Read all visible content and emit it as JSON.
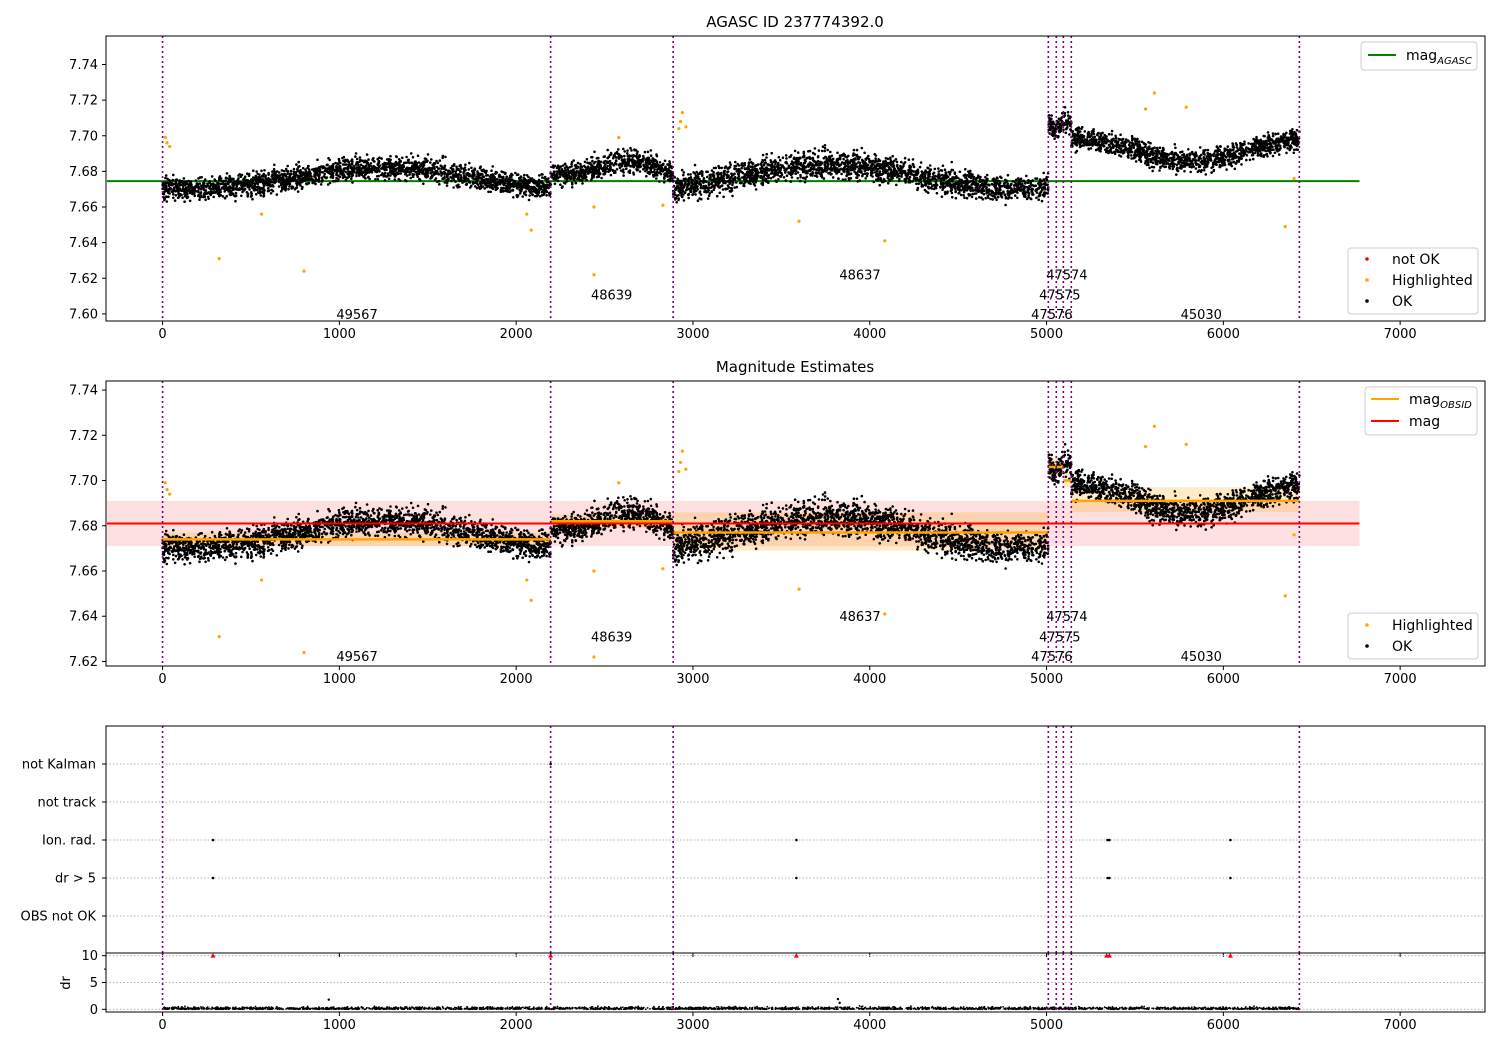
{
  "chart_data": [
    {
      "type": "scatter",
      "title": "AGASC ID 237774392.0",
      "xlim": [
        -320,
        7480
      ],
      "ylim": [
        7.596,
        7.756
      ],
      "x_ticks": [
        0,
        1000,
        2000,
        3000,
        4000,
        5000,
        6000,
        7000
      ],
      "y_ticks": [
        7.6,
        7.62,
        7.64,
        7.66,
        7.68,
        7.7,
        7.72,
        7.74
      ],
      "obsid_boundaries": [
        0,
        2195,
        2888,
        5010,
        5055,
        5095,
        5140,
        6430
      ],
      "obsid_labels": [
        {
          "text": "49567",
          "x": 1100,
          "y": 7.6
        },
        {
          "text": "48639",
          "x": 2540,
          "y": 7.611
        },
        {
          "text": "48637",
          "x": 3945,
          "y": 7.622
        },
        {
          "text": "47574",
          "x": 5115,
          "y": 7.622
        },
        {
          "text": "47575",
          "x": 5075,
          "y": 7.611
        },
        {
          "text": "47576",
          "x": 5030,
          "y": 7.6
        },
        {
          "text": "45030",
          "x": 5875,
          "y": 7.6
        }
      ],
      "reference_line": {
        "name": "mag_AGASC",
        "y": 7.6745,
        "x_range": [
          -320,
          6770
        ],
        "color": "#008000"
      },
      "segments": [
        {
          "x": [
            0,
            2195
          ],
          "base": 7.676,
          "amp": 0.006,
          "spread": 0.005
        },
        {
          "x": [
            2195,
            2888
          ],
          "base": 7.682,
          "amp": 0.004,
          "spread": 0.005
        },
        {
          "x": [
            2888,
            5010
          ],
          "base": 7.677,
          "amp": 0.007,
          "spread": 0.006
        },
        {
          "x": [
            5010,
            5140
          ],
          "base": 7.706,
          "amp": 0.003,
          "spread": 0.005
        },
        {
          "x": [
            5140,
            6430
          ],
          "base": 7.692,
          "amp": 0.006,
          "spread": 0.005
        }
      ],
      "highlighted_points": [
        {
          "x": 15,
          "y": 7.699
        },
        {
          "x": 25,
          "y": 7.696
        },
        {
          "x": 40,
          "y": 7.694
        },
        {
          "x": 320,
          "y": 7.631
        },
        {
          "x": 560,
          "y": 7.656
        },
        {
          "x": 800,
          "y": 7.624
        },
        {
          "x": 2060,
          "y": 7.656
        },
        {
          "x": 2085,
          "y": 7.647
        },
        {
          "x": 2440,
          "y": 7.66
        },
        {
          "x": 2440,
          "y": 7.622
        },
        {
          "x": 2580,
          "y": 7.699
        },
        {
          "x": 2830,
          "y": 7.661
        },
        {
          "x": 2920,
          "y": 7.704
        },
        {
          "x": 2930,
          "y": 7.708
        },
        {
          "x": 2940,
          "y": 7.713
        },
        {
          "x": 2960,
          "y": 7.705
        },
        {
          "x": 3600,
          "y": 7.652
        },
        {
          "x": 4085,
          "y": 7.641
        },
        {
          "x": 5560,
          "y": 7.715
        },
        {
          "x": 5610,
          "y": 7.724
        },
        {
          "x": 5790,
          "y": 7.716
        },
        {
          "x": 6350,
          "y": 7.649
        },
        {
          "x": 6400,
          "y": 7.676
        }
      ],
      "legend": [
        {
          "name": "not OK",
          "color": "#ff0000",
          "position": "lower-right"
        },
        {
          "name": "Highlighted",
          "color": "#ffa500",
          "position": "lower-right"
        },
        {
          "name": "OK",
          "color": "#000000",
          "position": "lower-right"
        }
      ]
    },
    {
      "type": "scatter",
      "title": "Magnitude Estimates",
      "xlim": [
        -320,
        7480
      ],
      "ylim": [
        7.618,
        7.744
      ],
      "x_ticks": [
        0,
        1000,
        2000,
        3000,
        4000,
        5000,
        6000,
        7000
      ],
      "y_ticks": [
        7.62,
        7.64,
        7.66,
        7.68,
        7.7,
        7.72,
        7.74
      ],
      "mag": {
        "y": 7.681,
        "band": [
          7.671,
          7.691
        ],
        "x_range": [
          -320,
          6770
        ],
        "color": "#ff0000"
      },
      "mag_obsid": [
        {
          "x": [
            0,
            2195
          ],
          "y": 7.674,
          "band": [
            7.671,
            7.677
          ]
        },
        {
          "x": [
            2195,
            2888
          ],
          "y": 7.682,
          "band": [
            7.679,
            7.685
          ]
        },
        {
          "x": [
            2888,
            5010
          ],
          "y": 7.677,
          "band": [
            7.669,
            7.686
          ]
        },
        {
          "x": [
            5010,
            5095
          ],
          "y": 7.706,
          "band": [
            7.702,
            7.71
          ]
        },
        {
          "x": [
            5095,
            5140
          ],
          "y": 7.7,
          "band": [
            7.697,
            7.703
          ]
        },
        {
          "x": [
            5140,
            6430
          ],
          "y": 7.691,
          "band": [
            7.686,
            7.697
          ]
        }
      ],
      "obsid_labels": [
        {
          "text": "49567",
          "x": 1100,
          "y": 7.6225
        },
        {
          "text": "48639",
          "x": 2540,
          "y": 7.631
        },
        {
          "text": "48637",
          "x": 3945,
          "y": 7.64
        },
        {
          "text": "47574",
          "x": 5115,
          "y": 7.64
        },
        {
          "text": "47575",
          "x": 5075,
          "y": 7.631
        },
        {
          "text": "47576",
          "x": 5030,
          "y": 7.6225
        },
        {
          "text": "45030",
          "x": 5875,
          "y": 7.6225
        }
      ],
      "legend_lines": [
        {
          "name": "mag_OBSID",
          "color": "#ffa500",
          "position": "top-right"
        },
        {
          "name": "mag",
          "color": "#ff0000",
          "position": "top-right"
        }
      ],
      "legend_points": [
        {
          "name": "Highlighted",
          "color": "#ffa500",
          "position": "lower-right"
        },
        {
          "name": "OK",
          "color": "#000000",
          "position": "lower-right"
        }
      ]
    },
    {
      "type": "scatter",
      "title": "",
      "xlim": [
        -320,
        7480
      ],
      "flag_rows": [
        "not Kalman",
        "not track",
        "Ion. rad.",
        "dr > 5",
        "OBS not OK"
      ],
      "flag_points": [
        {
          "row": "not Kalman",
          "x": 2195
        },
        {
          "row": "Ion. rad.",
          "x": 285
        },
        {
          "row": "Ion. rad.",
          "x": 3585
        },
        {
          "row": "Ion. rad.",
          "x": 5345
        },
        {
          "row": "Ion. rad.",
          "x": 5355
        },
        {
          "row": "Ion. rad.",
          "x": 6040
        },
        {
          "row": "dr > 5",
          "x": 285
        },
        {
          "row": "dr > 5",
          "x": 3585
        },
        {
          "row": "dr > 5",
          "x": 5345
        },
        {
          "row": "dr > 5",
          "x": 5355
        },
        {
          "row": "dr > 5",
          "x": 6040
        }
      ]
    },
    {
      "type": "scatter",
      "ylabel": "dr",
      "xlim": [
        -320,
        7480
      ],
      "ylim": [
        -0.5,
        10.5
      ],
      "y_ticks": [
        0,
        5,
        10
      ],
      "x_ticks": [
        0,
        1000,
        2000,
        3000,
        4000,
        5000,
        6000,
        7000
      ],
      "dr_noise": {
        "x_range": [
          0,
          6430
        ],
        "typical": 0.3
      },
      "dr_spikes": [
        {
          "x": 940,
          "y": 1.8
        },
        {
          "x": 3820,
          "y": 1.9
        },
        {
          "x": 3830,
          "y": 1.2
        }
      ],
      "dr_clipped": [
        {
          "x": 285,
          "y": 10
        },
        {
          "x": 2195,
          "y": 10
        },
        {
          "x": 3585,
          "y": 10
        },
        {
          "x": 5340,
          "y": 10
        },
        {
          "x": 5355,
          "y": 10
        },
        {
          "x": 6040,
          "y": 10
        }
      ]
    }
  ],
  "colors": {
    "ok": "#000000",
    "highlighted": "#ffa500",
    "not_ok": "#ff0000",
    "boundary": "#800080",
    "agasc": "#008000",
    "mag": "#ff0000",
    "mag_obsid": "#ffa500"
  }
}
